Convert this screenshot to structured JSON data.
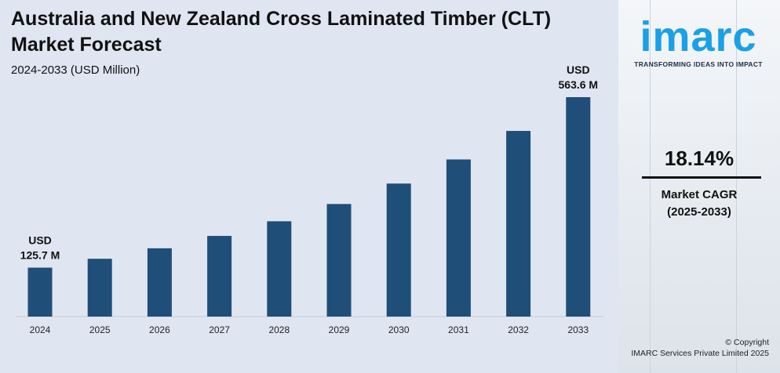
{
  "chart_data": {
    "type": "bar",
    "title": "Australia and New Zealand Cross Laminated Timber (CLT) Market Forecast",
    "subtitle": "2024-2033 (USD Million)",
    "categories": [
      "2024",
      "2025",
      "2026",
      "2027",
      "2028",
      "2029",
      "2030",
      "2031",
      "2032",
      "2033"
    ],
    "values": [
      125.7,
      148.5,
      175.4,
      207.2,
      244.8,
      289.2,
      341.7,
      403.6,
      476.9,
      563.6
    ],
    "ylim": [
      0,
      563.6
    ],
    "grid": false,
    "bar_color": "#1f4e79",
    "annotations": [
      {
        "category": "2024",
        "line1": "USD",
        "line2": "125.7 M"
      },
      {
        "category": "2033",
        "line1": "USD",
        "line2": "563.6 M"
      }
    ]
  },
  "sidebar": {
    "logo_text": "imarc",
    "tagline": "TRANSFORMING IDEAS INTO IMPACT",
    "cagr_value": "18.14%",
    "cagr_label_line1": "Market CAGR",
    "cagr_label_line2": "(2025-2033)",
    "copyright_line1": "© Copyright",
    "copyright_line2": "IMARC Services Private Limited 2025",
    "logo_color": "#1aa0e6"
  }
}
